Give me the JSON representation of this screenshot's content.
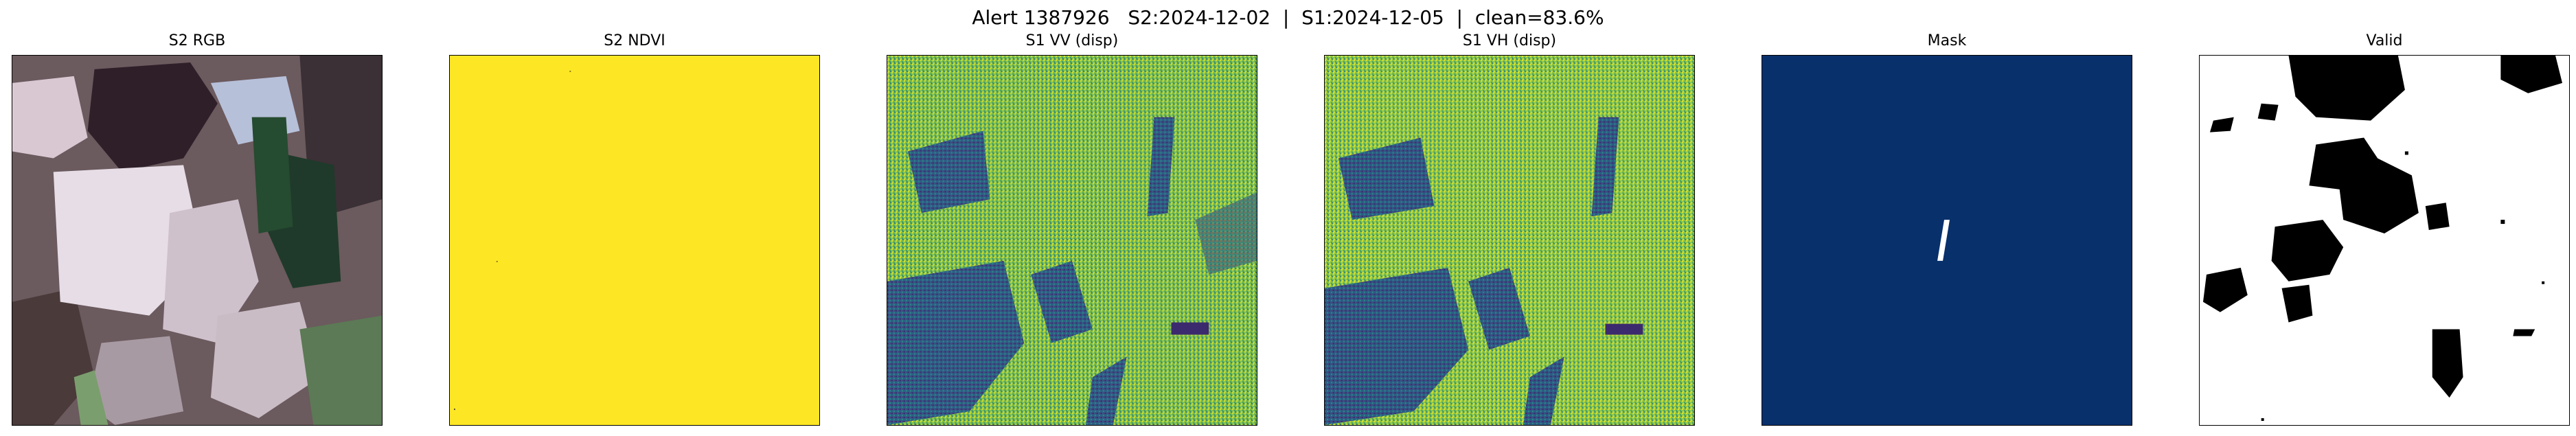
{
  "figure": {
    "title": "Alert 1387926   S2:2024-12-02  |  S1:2024-12-05  |  clean=83.6%"
  },
  "panels": [
    {
      "title": "S2 RGB"
    },
    {
      "title": "S2 NDVI"
    },
    {
      "title": "S1 VV (disp)"
    },
    {
      "title": "S1 VH (disp)"
    },
    {
      "title": "Mask"
    },
    {
      "title": "Valid"
    }
  ],
  "colors": {
    "ndvi_fill": "#fde725",
    "mask_fill": "#08306b",
    "mask_line": "#ffffff",
    "valid_fill": "#ffffff",
    "invalid_fill": "#000000",
    "sar_low": "#3b2a6e",
    "sar_mid": "#21918c",
    "sar_high": "#e8e419"
  }
}
